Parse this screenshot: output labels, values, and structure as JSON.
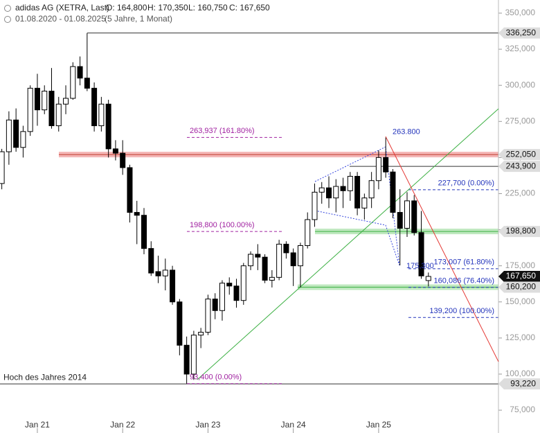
{
  "chart_data": {
    "type": "candlestick",
    "title": "adidas AG (XETRA, Last)",
    "ohlc_header": [
      "O: 164,800",
      "H: 170,350",
      "L: 160,750",
      "C: 167,650"
    ],
    "period": "01.08.2020 - 01.08.2025",
    "interval": "(5 Jahre, 1 Monat)",
    "categories": [
      null,
      null,
      null,
      null,
      null,
      "Jan 21",
      null,
      null,
      null,
      null,
      null,
      null,
      null,
      null,
      null,
      null,
      null,
      "Jan 22",
      null,
      null,
      null,
      null,
      null,
      null,
      null,
      null,
      null,
      null,
      null,
      "Jan 23",
      null,
      null,
      null,
      null,
      null,
      null,
      null,
      null,
      null,
      null,
      null,
      "Jan 24",
      null,
      null,
      null,
      null,
      null,
      null,
      null,
      null,
      null,
      null,
      null,
      "Jan 25",
      null,
      null,
      null,
      null,
      null,
      null,
      null
    ],
    "open": [
      232,
      254,
      276,
      257,
      268,
      298,
      283,
      296,
      272,
      287,
      291,
      313,
      305,
      298,
      272,
      287,
      256,
      253,
      243,
      212,
      210,
      187,
      171,
      168,
      172,
      150,
      120,
      100,
      127,
      129,
      152,
      144,
      163,
      161,
      151,
      175,
      183,
      181,
      165,
      167,
      190,
      184,
      175,
      189,
      207,
      226,
      229,
      222,
      230,
      227,
      237,
      215,
      222,
      234,
      250,
      240,
      212,
      201,
      220,
      198,
      164.8
    ],
    "high": [
      256,
      282,
      284,
      272,
      300,
      308,
      300,
      312,
      292,
      300,
      316,
      320,
      336.25,
      302,
      292,
      290,
      262,
      262,
      245,
      220,
      215,
      192,
      182,
      180,
      175,
      152,
      126,
      130,
      132,
      155,
      156,
      165,
      167,
      166,
      177,
      185,
      190,
      183,
      172,
      193,
      192,
      187,
      191,
      212,
      232,
      233,
      237,
      235,
      236,
      240,
      240,
      225,
      240,
      255,
      263.8,
      242,
      228,
      226,
      224,
      213,
      170.35
    ],
    "low": [
      228,
      245,
      254,
      250,
      265,
      272,
      280,
      270,
      268,
      280,
      290,
      300,
      296,
      268,
      268,
      250,
      248,
      238,
      205,
      190,
      183,
      168,
      163,
      158,
      148,
      113,
      93.4,
      96,
      118,
      127,
      138,
      137,
      155,
      146,
      148,
      172,
      172,
      163,
      160,
      165,
      180,
      161,
      160,
      187,
      202,
      218,
      215,
      212,
      215,
      220,
      210,
      207,
      215,
      228,
      236,
      208,
      175.3,
      195,
      196,
      166,
      160.75
    ],
    "close": [
      254,
      276,
      257,
      268,
      298,
      283,
      296,
      272,
      287,
      291,
      313,
      305,
      298,
      272,
      287,
      256,
      253,
      243,
      212,
      210,
      187,
      170,
      168,
      172,
      150,
      120,
      100,
      127,
      129,
      152,
      144,
      163,
      161,
      151,
      175,
      183,
      181,
      165,
      167,
      190,
      184,
      175,
      189,
      207,
      226,
      229,
      222,
      230,
      227,
      237,
      215,
      222,
      234,
      250,
      240,
      212,
      201,
      220,
      198,
      168,
      167.65
    ],
    "ylim": [
      59.2,
      359.1
    ],
    "yticks": [
      {
        "value": 75,
        "label": "75,000"
      },
      {
        "value": 100,
        "label": "100,000"
      },
      {
        "value": 125,
        "label": "125,000"
      },
      {
        "value": 150,
        "label": "150,000"
      },
      {
        "value": 175,
        "label": "175,000"
      },
      {
        "value": 200,
        "label": "200,000"
      },
      {
        "value": 225,
        "label": "225,000"
      },
      {
        "value": 250,
        "label": "250,000"
      },
      {
        "value": 275,
        "label": "275,000"
      },
      {
        "value": 300,
        "label": "300,000"
      },
      {
        "value": 325,
        "label": "325,000"
      },
      {
        "value": 350,
        "label": "350,000"
      }
    ],
    "levels": [
      {
        "value": 336.25,
        "label": "336,250"
      },
      {
        "value": 252.05,
        "label": "252,050"
      },
      {
        "value": 243.9,
        "label": "243,900"
      },
      {
        "value": 198.8,
        "label": "198,800"
      },
      {
        "value": 167.65,
        "label": "167,650"
      },
      {
        "value": 160.2,
        "label": "160,200"
      },
      {
        "value": 93.22,
        "label": "93,220"
      }
    ],
    "fib_left": [
      {
        "value": 263.937,
        "label": "263,937 (161.80%)"
      },
      {
        "value": 198.8,
        "label": "198,800 (100.00%)"
      },
      {
        "value": 93.4,
        "label": "93,400 (0.00%)"
      }
    ],
    "fib_right": [
      {
        "value": 227.7,
        "label": "227,700 (0.00%)"
      },
      {
        "value": 173.007,
        "label": "173,007 (61.80%)"
      },
      {
        "value": 160.086,
        "label": "160,086 (76.40%)"
      },
      {
        "value": 139.2,
        "label": "139,200 (100.00%)"
      }
    ],
    "point_labels": [
      {
        "value": 263.8,
        "label": "263.800"
      },
      {
        "value": 175.3,
        "label": "175,300"
      }
    ],
    "annotation": "Hoch des Jahres 2014"
  }
}
